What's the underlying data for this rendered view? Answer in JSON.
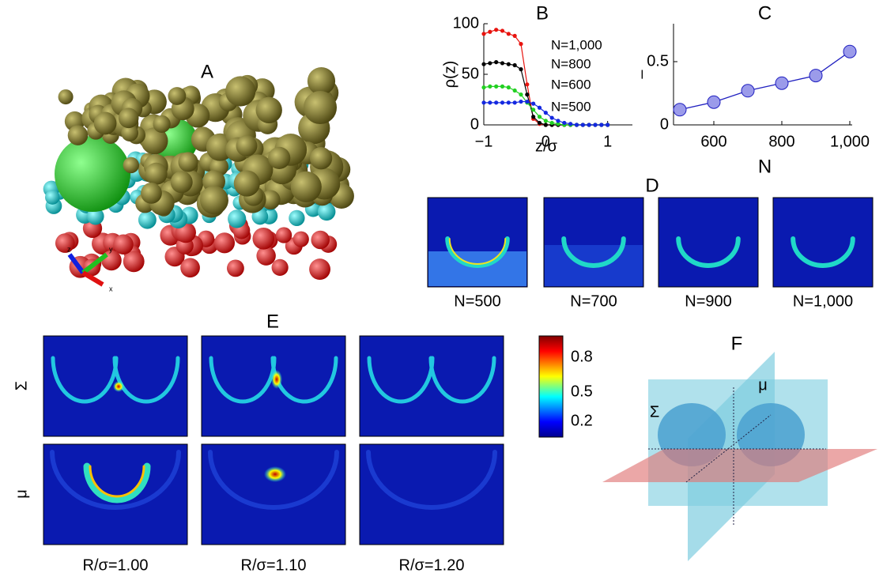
{
  "chart_data": [
    {
      "type": "line",
      "title": "B",
      "xlabel": "z/σ",
      "ylabel": "ρ(z)",
      "x": [
        -1,
        -0.9,
        -0.8,
        -0.7,
        -0.6,
        -0.5,
        -0.4,
        -0.3,
        -0.2,
        -0.1,
        0,
        0.1,
        0.2,
        0.3,
        0.4,
        0.5,
        0.6,
        0.7,
        0.8,
        0.9,
        1
      ],
      "series": [
        {
          "name": "N=1,000",
          "color": "#e8140f",
          "values": [
            90,
            92,
            94,
            93,
            90,
            88,
            80,
            40,
            6,
            1,
            0,
            0,
            0,
            0,
            0,
            0,
            0,
            0,
            0,
            0,
            0
          ]
        },
        {
          "name": "N=800",
          "color": "#000000",
          "values": [
            60,
            61,
            62,
            61,
            60,
            59,
            55,
            30,
            8,
            2,
            0,
            0,
            0,
            0,
            0,
            0,
            0,
            0,
            0,
            0,
            0
          ]
        },
        {
          "name": "N=600",
          "color": "#22d022",
          "values": [
            37,
            38,
            38,
            38,
            37,
            34,
            30,
            22,
            15,
            8,
            4,
            2,
            1,
            0,
            0,
            0,
            0,
            0,
            0,
            0,
            0
          ]
        },
        {
          "name": "N=500",
          "color": "#1428e0",
          "values": [
            22,
            22,
            22,
            22,
            22,
            22,
            23,
            23,
            21,
            17,
            12,
            7,
            4,
            2,
            1,
            0,
            0,
            0,
            0,
            0,
            0
          ]
        }
      ],
      "xlim": [
        -1,
        1.4
      ],
      "xticks": [
        {
          "value": -1,
          "label": "−1"
        },
        0,
        1
      ],
      "ylim": [
        0,
        100
      ],
      "yticks": [
        0,
        50,
        100
      ]
    },
    {
      "type": "line",
      "title": "C",
      "xlabel": "N",
      "ylabel": "–",
      "x": [
        500,
        600,
        700,
        800,
        900,
        1000
      ],
      "series": [
        {
          "color": "#2020c0",
          "values": [
            0.12,
            0.18,
            0.27,
            0.33,
            0.39,
            0.58
          ]
        }
      ],
      "xlim": [
        500,
        1000
      ],
      "xticks": [
        600,
        800,
        {
          "value": 1000,
          "label": "1,000"
        }
      ],
      "ylim": [
        0,
        0.8
      ],
      "yticks": [
        0,
        0.5
      ]
    }
  ],
  "panels": {
    "A": {
      "label": "A",
      "axes": [
        "x",
        "y",
        "z"
      ]
    },
    "D": {
      "label": "D",
      "captions": [
        "N=500",
        "N=700",
        "N=900",
        "N=1,000"
      ]
    },
    "E": {
      "label": "E",
      "rows": [
        "Σ",
        "μ"
      ],
      "columns": [
        "R/σ=1.00",
        "R/σ=1.10",
        "R/σ=1.20"
      ],
      "colorbar_ticks": [
        0.8,
        0.5,
        0.2
      ]
    },
    "F": {
      "label": "F",
      "planes": [
        "Σ",
        "μ"
      ]
    }
  }
}
